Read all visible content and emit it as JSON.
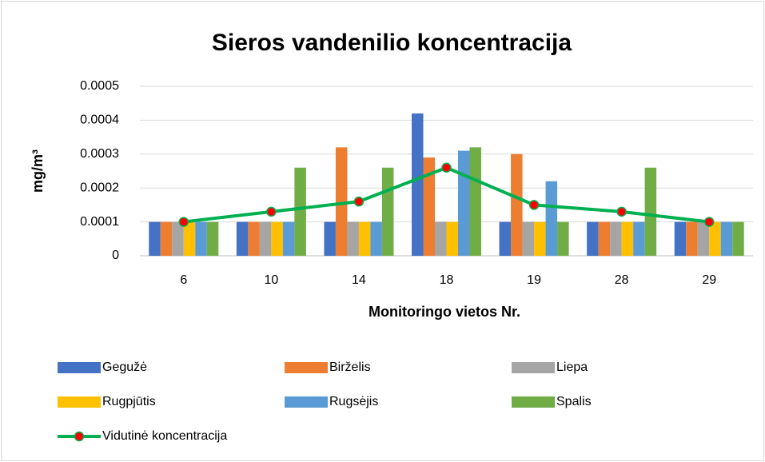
{
  "chart_data": {
    "type": "bar",
    "title": "Sieros vandenilio koncentracija",
    "x_label": "Monitoringo vietos Nr.",
    "y_label": "mg/m³",
    "categories": [
      "6",
      "10",
      "14",
      "18",
      "19",
      "28",
      "29"
    ],
    "series": [
      {
        "name": "Gegužė",
        "color": "#4472c4",
        "values": [
          0.0001,
          0.0001,
          0.0001,
          0.00042,
          0.0001,
          0.0001,
          0.0001
        ]
      },
      {
        "name": "Birželis",
        "color": "#ed7d31",
        "values": [
          0.0001,
          0.0001,
          0.00032,
          0.00029,
          0.0003,
          0.0001,
          0.0001
        ]
      },
      {
        "name": "Liepa",
        "color": "#a5a5a5",
        "values": [
          0.0001,
          0.0001,
          0.0001,
          0.0001,
          0.0001,
          0.0001,
          0.0001
        ]
      },
      {
        "name": "Rugpjūtis",
        "color": "#ffc000",
        "values": [
          0.0001,
          0.0001,
          0.0001,
          0.0001,
          0.0001,
          0.0001,
          0.0001
        ]
      },
      {
        "name": "Rugsėjis",
        "color": "#5b9bd5",
        "values": [
          0.0001,
          0.0001,
          0.0001,
          0.00031,
          0.00022,
          0.0001,
          0.0001
        ]
      },
      {
        "name": "Spalis",
        "color": "#70ad47",
        "values": [
          0.0001,
          0.00026,
          0.00026,
          0.00032,
          0.0001,
          0.00026,
          0.0001
        ]
      },
      {
        "name": "Vidutinė koncentracija",
        "type": "line",
        "color": "#00b050",
        "marker_color": "#ff0000",
        "values": [
          0.0001,
          0.00013,
          0.00016,
          0.00026,
          0.00015,
          0.00013,
          0.0001
        ]
      }
    ],
    "ylim": [
      0,
      0.0005
    ],
    "yticks": [
      0,
      0.0001,
      0.0002,
      0.0003,
      0.0004,
      0.0005
    ],
    "grid": true,
    "legend": "bottom"
  }
}
